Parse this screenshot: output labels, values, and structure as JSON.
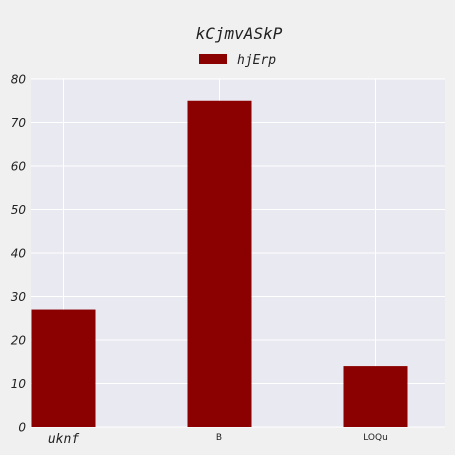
{
  "chart_data": {
    "type": "bar",
    "title": "kCjmvASkP",
    "categories": [
      "uknf",
      "B",
      "LOQu"
    ],
    "series": [
      {
        "name": "hjErp",
        "values": [
          27,
          75,
          14
        ],
        "color": "#8b0000"
      }
    ],
    "xlabel": "",
    "ylabel": "",
    "ylim": [
      0,
      80
    ],
    "yticks": [
      0,
      10,
      20,
      30,
      40,
      50,
      60,
      70,
      80
    ],
    "grid": true,
    "legend_position": "top-center",
    "plot_background": "#e9e9f1",
    "figure_background": "#f0f0f0"
  }
}
